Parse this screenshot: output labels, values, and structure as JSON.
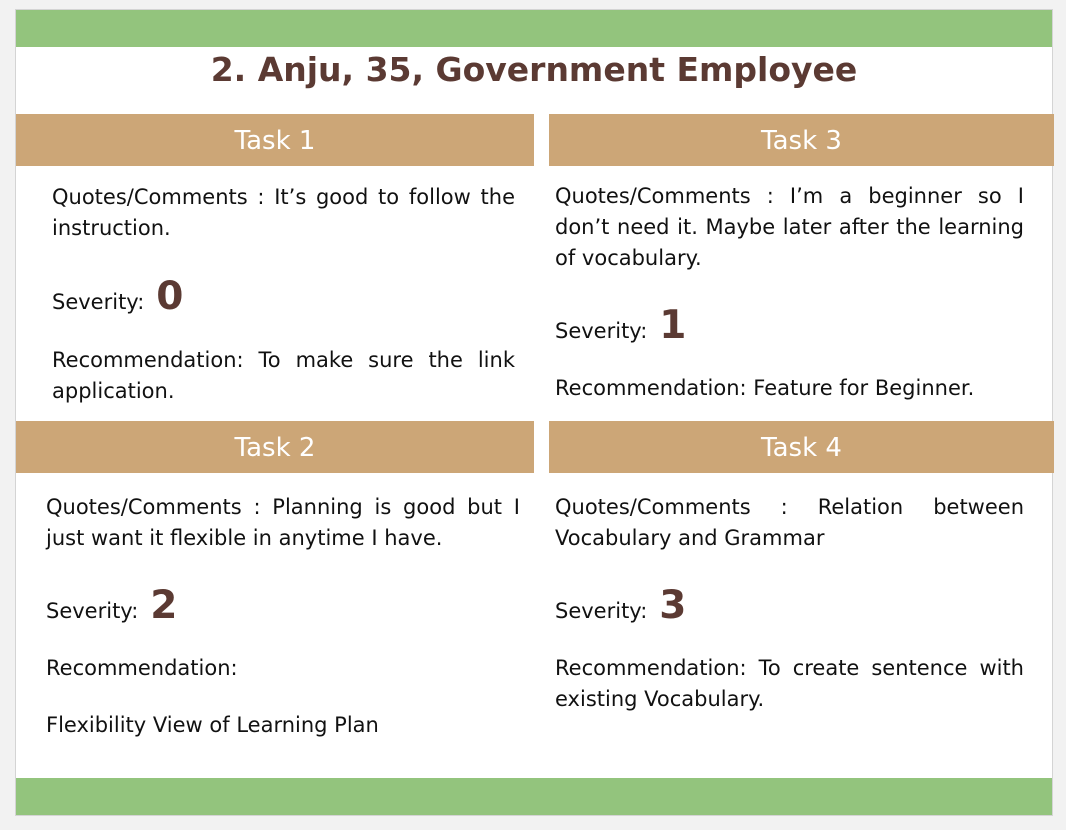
{
  "title": "2. Anju, 35, Government Employee",
  "severity_label": "Severity:",
  "tasks": {
    "task1": {
      "header": "Task 1",
      "comment": "Quotes/Comments : It’s good to follow the instruction.",
      "severity": "0",
      "recommendation": "Recommendation: To make sure the link application."
    },
    "task2": {
      "header": "Task 2",
      "comment": "Quotes/Comments : Planning is good but I just want it flexible in anytime I have.",
      "severity": "2",
      "recommendation_label": "Recommendation:",
      "recommendation_detail": "Flexibility View of Learning Plan"
    },
    "task3": {
      "header": "Task 3",
      "comment": "Quotes/Comments : I’m a beginner so I don’t need it. Maybe later after the learning of  vocabulary.",
      "severity": "1",
      "recommendation": "Recommendation: Feature for Beginner."
    },
    "task4": {
      "header": "Task 4",
      "comment": "Quotes/Comments : Relation between Vocabulary and Grammar",
      "severity": "3",
      "recommendation": "Recommendation: To create sentence with existing Vocabulary."
    }
  },
  "colors": {
    "accent_green": "#93c47d",
    "header_tan": "#cca677",
    "title_brown": "#5b3a33"
  }
}
